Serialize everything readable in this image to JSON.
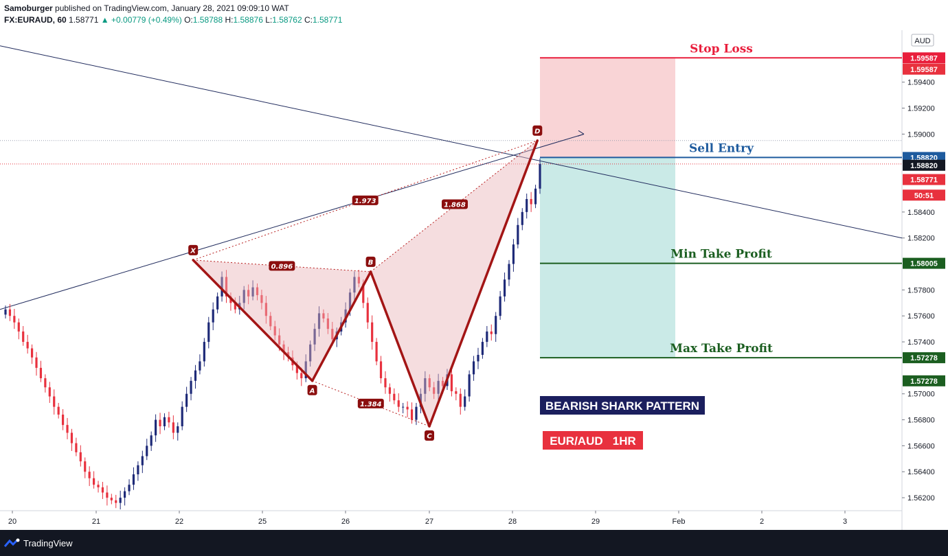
{
  "header": {
    "publisher": "Samoburger",
    "published_text": "published on TradingView.com, January 28, 2021 09:09:10 WAT",
    "symbol": "FX:EURAUD, 60",
    "last": "1.58771",
    "change": "+0.00779 (+0.49%)",
    "o_label": "O:",
    "o": "1.58788",
    "h_label": "H:",
    "h": "1.58876",
    "l_label": "L:",
    "l": "1.58762",
    "c_label": "C:",
    "c": "1.58771",
    "currency": "AUD"
  },
  "footer": {
    "brand": "TradingView"
  },
  "chart_data": {
    "type": "candlestick",
    "title": "BEARISH SHARK PATTERN",
    "subtitle": "EUR/AUD   1HR",
    "currency": "AUD",
    "ylim": [
      1.561,
      1.598
    ],
    "y_ticks": [
      "1.56200",
      "1.56400",
      "1.56600",
      "1.56800",
      "1.57000",
      "1.57400",
      "1.57600",
      "1.57800",
      "1.58200",
      "1.58400",
      "1.59000",
      "1.59200",
      "1.59400"
    ],
    "x_ticks": [
      "20",
      "21",
      "22",
      "25",
      "26",
      "27",
      "28",
      "29",
      "Feb",
      "2",
      "3"
    ],
    "pattern_points": [
      {
        "name": "X",
        "day": 22.5,
        "price": 1.5803
      },
      {
        "name": "A",
        "day": 25.6,
        "price": 1.571
      },
      {
        "name": "B",
        "day": 26.3,
        "price": 1.5794
      },
      {
        "name": "C",
        "day": 27.0,
        "price": 1.5675
      },
      {
        "name": "D",
        "day": 28.3,
        "price": 1.5895
      }
    ],
    "ratios": [
      {
        "label": "0.896",
        "from": "X",
        "to": "B"
      },
      {
        "label": "1.384",
        "from": "A",
        "to": "C"
      },
      {
        "label": "1.973",
        "from": "X",
        "to": "D"
      },
      {
        "label": "1.868",
        "from": "B",
        "to": "D"
      }
    ],
    "levels": [
      {
        "name": "Stop Loss",
        "price": 1.59587,
        "label": "1.59587",
        "color": "#e91e3c"
      },
      {
        "name": "Sell Entry",
        "price": 1.5882,
        "label": "1.58820",
        "color": "#1e5b9e"
      },
      {
        "name": "Min Take Profit",
        "price": 1.58005,
        "label": "1.58005",
        "color": "#1b5e20"
      },
      {
        "name": "Max Take Profit",
        "price": 1.57278,
        "label": "1.57278",
        "color": "#1b5e20"
      }
    ],
    "axis_badges": [
      {
        "label": "1.59587",
        "price": 1.595,
        "bg": "#e8313e"
      },
      {
        "label": "1.58820",
        "price": 1.5876,
        "bg": "#131722"
      },
      {
        "label": "1.58771",
        "price": 1.5865,
        "bg": "#e8313e"
      },
      {
        "label": "50:51",
        "price": 1.5853,
        "bg": "#e8313e"
      },
      {
        "label": "1.57278",
        "price": 1.571,
        "bg": "#1b5e20"
      }
    ],
    "last_price": 1.58771,
    "countdown": "50:51",
    "candles_close": [
      1.5765,
      1.576,
      1.5755,
      1.5748,
      1.574,
      1.5735,
      1.5728,
      1.572,
      1.5712,
      1.5705,
      1.5698,
      1.569,
      1.5684,
      1.5676,
      1.567,
      1.5662,
      1.5655,
      1.5648,
      1.564,
      1.5635,
      1.563,
      1.5628,
      1.5624,
      1.562,
      1.5618,
      1.5616,
      1.562,
      1.5625,
      1.563,
      1.5638,
      1.5645,
      1.5652,
      1.566,
      1.5668,
      1.568,
      1.5675,
      1.5682,
      1.5678,
      1.567,
      1.5675,
      1.569,
      1.57,
      1.571,
      1.5718,
      1.5725,
      1.574,
      1.5755,
      1.5765,
      1.5775,
      1.579,
      1.5775,
      1.577,
      1.5765,
      1.577,
      1.578,
      1.5775,
      1.5782,
      1.5776,
      1.577,
      1.576,
      1.5752,
      1.5745,
      1.5738,
      1.5732,
      1.5728,
      1.5722,
      1.5716,
      1.5712,
      1.5725,
      1.5738,
      1.575,
      1.5762,
      1.5758,
      1.575,
      1.5742,
      1.5748,
      1.5755,
      1.5765,
      1.5778,
      1.579,
      1.5785,
      1.577,
      1.5755,
      1.574,
      1.5725,
      1.5712,
      1.5705,
      1.57,
      1.5695,
      1.569,
      1.569,
      1.5688,
      1.568,
      1.569,
      1.57,
      1.5712,
      1.5705,
      1.57,
      1.571,
      1.5706,
      1.5715,
      1.5702,
      1.57,
      1.569,
      1.5698,
      1.5715,
      1.5725,
      1.573,
      1.574,
      1.5748,
      1.5746,
      1.576,
      1.5775,
      1.5788,
      1.58,
      1.5815,
      1.583,
      1.584,
      1.585,
      1.5846,
      1.5858,
      1.5877
    ]
  }
}
